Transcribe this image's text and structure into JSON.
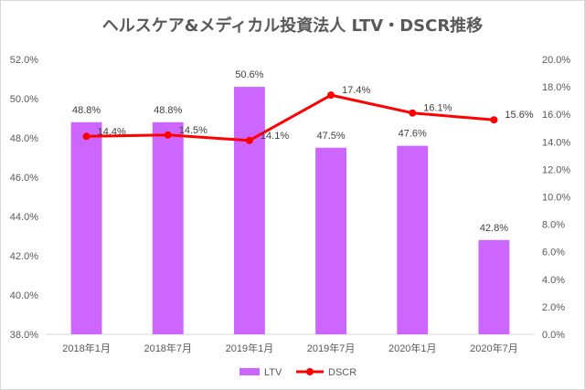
{
  "chart_data": {
    "type": "bar+line",
    "title": "ヘルスケア&メディカル投資法人 LTV・DSCR推移",
    "categories": [
      "2018年1月",
      "2018年7月",
      "2019年1月",
      "2019年7月",
      "2020年1月",
      "2020年7月"
    ],
    "series": [
      {
        "name": "LTV",
        "type": "bar",
        "axis": "left",
        "values": [
          48.8,
          48.8,
          50.6,
          47.5,
          47.6,
          42.8
        ],
        "labels": [
          "48.8%",
          "48.8%",
          "50.6%",
          "47.5%",
          "47.6%",
          "42.8%"
        ],
        "color": "#cc66ff"
      },
      {
        "name": "DSCR",
        "type": "line",
        "axis": "right",
        "values": [
          14.4,
          14.5,
          14.1,
          17.4,
          16.1,
          15.6
        ],
        "labels": [
          "14.4%",
          "14.5%",
          "14.1%",
          "17.4%",
          "16.1%",
          "15.6%"
        ],
        "color": "#ff0000"
      }
    ],
    "y_left": {
      "range": [
        38,
        52
      ],
      "ticks": [
        "38.0%",
        "40.0%",
        "42.0%",
        "44.0%",
        "46.0%",
        "48.0%",
        "50.0%",
        "52.0%"
      ]
    },
    "y_right": {
      "range": [
        0,
        20
      ],
      "ticks": [
        "0.0%",
        "2.0%",
        "4.0%",
        "6.0%",
        "8.0%",
        "10.0%",
        "12.0%",
        "14.0%",
        "16.0%",
        "18.0%",
        "20.0%"
      ]
    },
    "grid": false,
    "legend": "bottom"
  }
}
